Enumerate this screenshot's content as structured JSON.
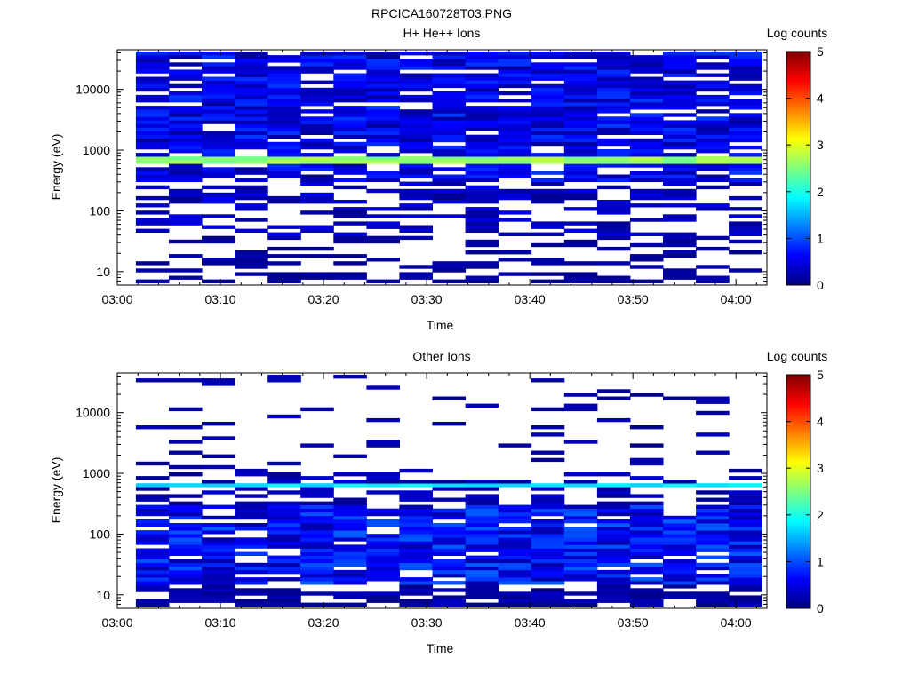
{
  "figure": {
    "title": "RPCICA160728T03.PNG"
  },
  "colors": {
    "scale": [
      "#00007f",
      "#0000ff",
      "#007fff",
      "#00ffff",
      "#7fff7f",
      "#ffff00",
      "#ff7f00",
      "#ff0000",
      "#7f0000"
    ],
    "background": "#ffffff"
  },
  "chart_data": [
    {
      "type": "heatmap",
      "title": "H+ He++ Ions",
      "xlabel": "Time",
      "ylabel": "Energy (eV)",
      "colorbar_label": "Log counts",
      "y_scale": "log",
      "x_range": [
        "03:00",
        "04:03"
      ],
      "y_range": [
        6,
        45000
      ],
      "x_ticks": [
        "03:00",
        "03:10",
        "03:20",
        "03:30",
        "03:40",
        "03:50",
        "04:00"
      ],
      "y_ticks": [
        "10",
        "100",
        "1000",
        "10000"
      ],
      "colorbar_range": [
        0,
        5
      ],
      "colorbar_ticks": [
        "0",
        "1",
        "2",
        "3",
        "4",
        "5"
      ],
      "time_bins": 19,
      "energy_bins": 64,
      "peak_band_eV": [
        560,
        780
      ],
      "peak_log_counts": 2.8,
      "seed": 7
    },
    {
      "type": "heatmap",
      "title": "Other Ions",
      "xlabel": "Time",
      "ylabel": "Energy (eV)",
      "colorbar_label": "Log counts",
      "y_scale": "log",
      "x_range": [
        "03:00",
        "04:03"
      ],
      "y_range": [
        6,
        45000
      ],
      "x_ticks": [
        "03:00",
        "03:10",
        "03:20",
        "03:30",
        "03:40",
        "03:50",
        "04:00"
      ],
      "y_ticks": [
        "10",
        "100",
        "1000",
        "10000"
      ],
      "colorbar_range": [
        0,
        5
      ],
      "colorbar_ticks": [
        "0",
        "1",
        "2",
        "3",
        "4",
        "5"
      ],
      "time_bins": 19,
      "energy_bins": 64,
      "peak_band_eV": [
        600,
        700
      ],
      "peak_log_counts": 1.9,
      "seed": 23
    }
  ]
}
